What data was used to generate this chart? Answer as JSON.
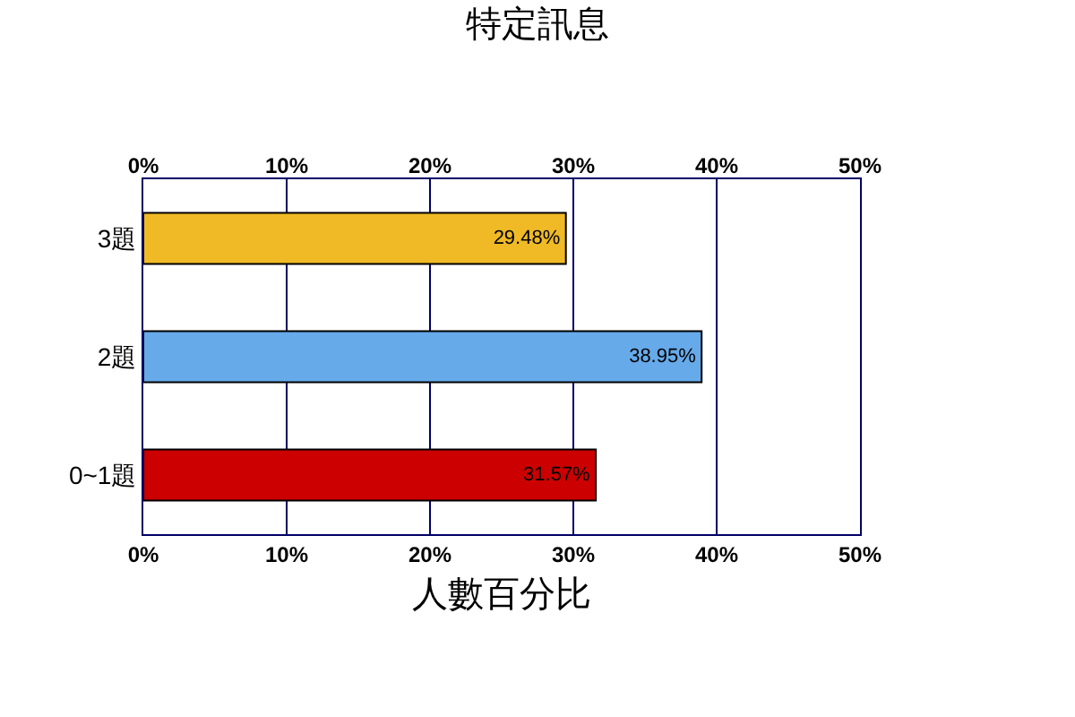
{
  "chart_data": {
    "type": "bar",
    "orientation": "horizontal",
    "title": "特定訊息",
    "xlabel": "人數百分比",
    "categories": [
      "3題",
      "2題",
      "0~1題"
    ],
    "values": [
      29.48,
      38.95,
      31.57
    ],
    "colors": [
      "#efba26",
      "#66aaea",
      "#cc0000"
    ],
    "value_labels": [
      "29.48%",
      "38.95%",
      "31.57%"
    ],
    "xlim": [
      0,
      50
    ],
    "xticks": [
      {
        "value": 0,
        "label": "0%"
      },
      {
        "value": 10,
        "label": "10%"
      },
      {
        "value": 20,
        "label": "20%"
      },
      {
        "value": 30,
        "label": "30%"
      },
      {
        "value": 40,
        "label": "40%"
      },
      {
        "value": 50,
        "label": "50%"
      }
    ],
    "x2lim": [
      0,
      50
    ],
    "x2ticks": [
      {
        "value": 0,
        "label": "0%"
      },
      {
        "value": 10,
        "label": "10%"
      },
      {
        "value": 20,
        "label": "20%"
      },
      {
        "value": 30,
        "label": "30%"
      },
      {
        "value": 40,
        "label": "40%"
      },
      {
        "value": 50,
        "label": "50%"
      }
    ],
    "grid": "x"
  }
}
